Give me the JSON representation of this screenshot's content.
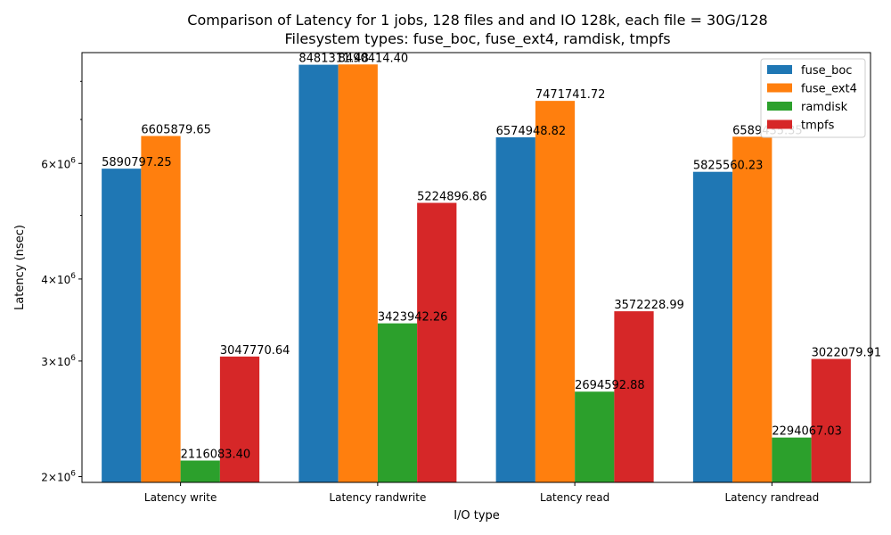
{
  "chart_data": {
    "type": "bar",
    "title": "Comparison of Latency for 1 jobs, 128 files and  and IO 128k, each file = 30G/128",
    "subtitle": "Filesystem types: fuse_boc, fuse_ext4, ramdisk, tmpfs",
    "xlabel": "I/O type",
    "ylabel": "Latency (nsec)",
    "y_scale": "log",
    "ylim": [
      1960000,
      8850000
    ],
    "y_ticks": [
      {
        "value": 2000000,
        "mantissa": "2",
        "base": "10",
        "exp": "6"
      },
      {
        "value": 3000000,
        "mantissa": "3",
        "base": "10",
        "exp": "6"
      },
      {
        "value": 4000000,
        "mantissa": "4",
        "base": "10",
        "exp": "6"
      },
      {
        "value": 6000000,
        "mantissa": "6",
        "base": "10",
        "exp": "6"
      }
    ],
    "y_minor_ticks": [
      5000000,
      7000000,
      8000000
    ],
    "categories": [
      "Latency write",
      "Latency randwrite",
      "Latency read",
      "Latency randread"
    ],
    "series": [
      {
        "name": "fuse_boc",
        "color": "#1f77b4",
        "values": [
          5890797.25,
          8481311.48,
          6574948.82,
          5825560.23
        ]
      },
      {
        "name": "fuse_ext4",
        "color": "#ff7f0e",
        "values": [
          6605879.65,
          8490414.4,
          7471741.72,
          6589435.35
        ]
      },
      {
        "name": "ramdisk",
        "color": "#2ca02c",
        "values": [
          2116083.4,
          3423942.26,
          2694592.88,
          2294067.03
        ]
      },
      {
        "name": "tmpfs",
        "color": "#d62728",
        "values": [
          3047770.64,
          5224896.86,
          3572228.99,
          3022079.91
        ]
      }
    ],
    "data_labels": [
      [
        "5890797.25",
        "8481311.48",
        "6574948.82",
        "5825560.23"
      ],
      [
        "6605879.65",
        "8490414.40",
        "7471741.72",
        "6589435.35"
      ],
      [
        "2116083.40",
        "3423942.26",
        "2694592.88",
        "2294067.03"
      ],
      [
        "3047770.64",
        "5224896.86",
        "3572228.99",
        "3022079.91"
      ]
    ],
    "legend_position": "top-right",
    "grid": false
  }
}
